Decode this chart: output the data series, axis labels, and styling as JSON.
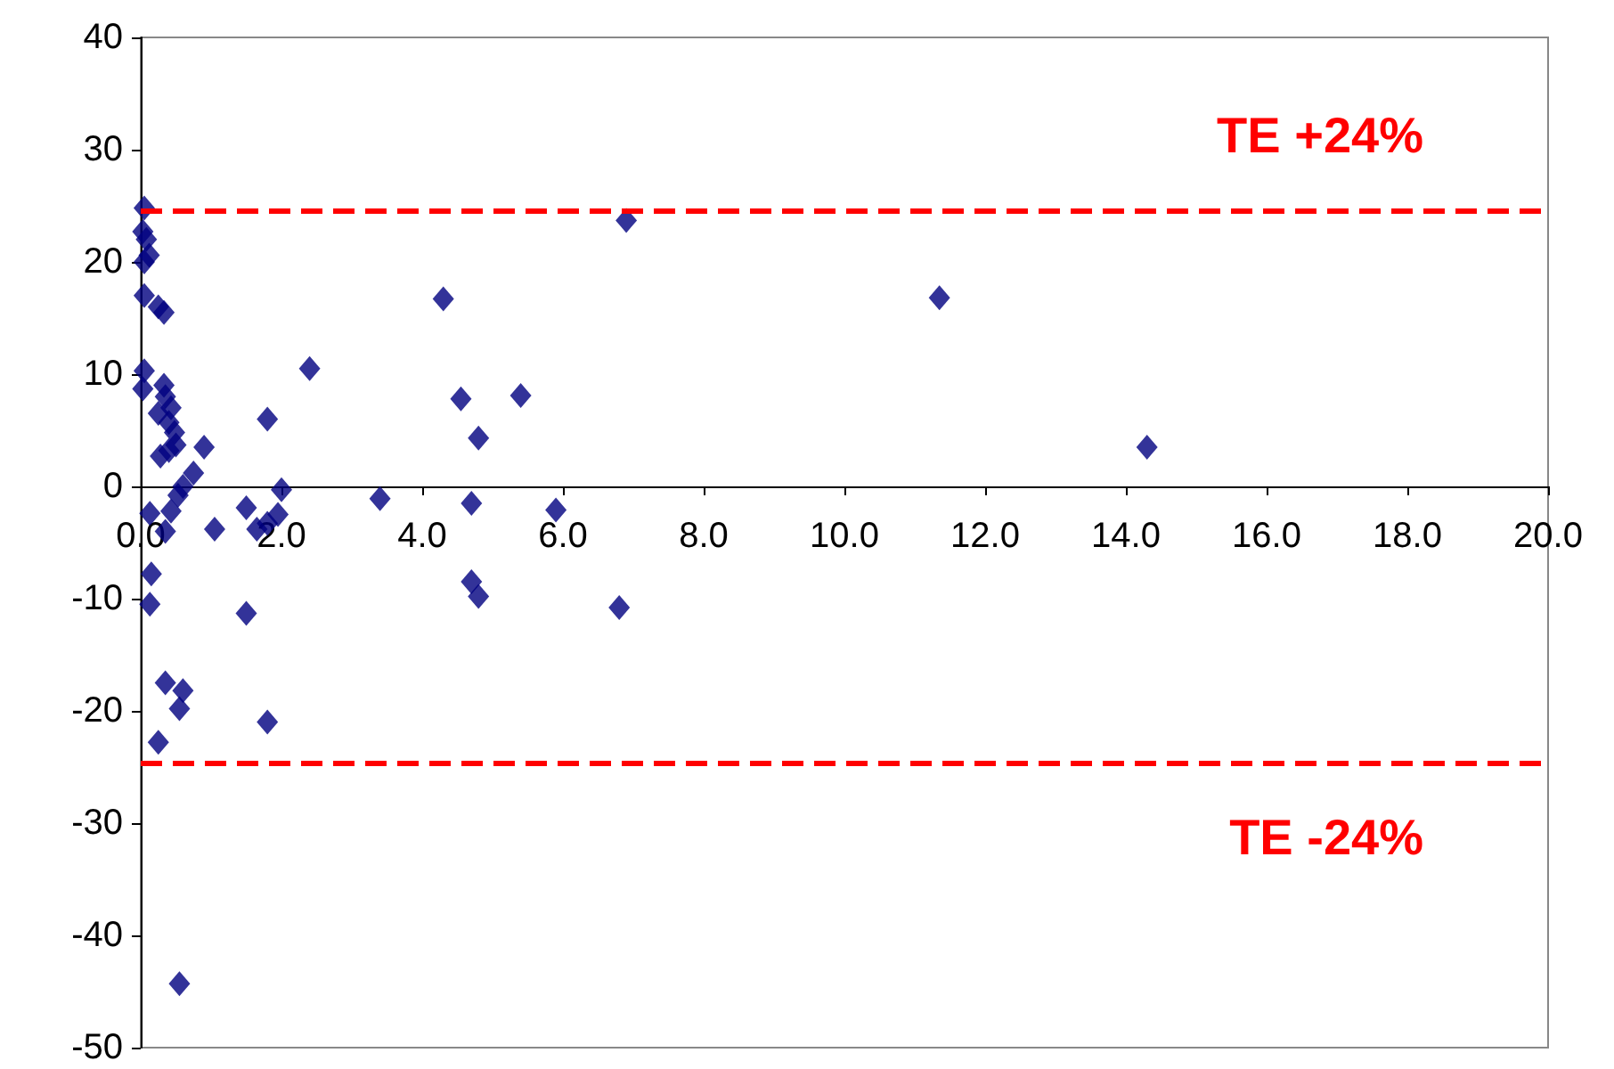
{
  "chart_data": {
    "type": "scatter",
    "marker": "diamond",
    "grid": false,
    "x": [
      0.05,
      0.03,
      0.08,
      0.05,
      0.12,
      0.05,
      0.25,
      0.33,
      0.05,
      0.03,
      0.33,
      0.35,
      0.43,
      0.25,
      0.4,
      0.48,
      0.5,
      0.4,
      0.28,
      0.9,
      0.75,
      0.6,
      0.53,
      0.43,
      0.13,
      0.35,
      1.05,
      1.5,
      1.5,
      1.8,
      1.65,
      1.95,
      2.0,
      1.8,
      2.4,
      3.4,
      4.3,
      4.55,
      4.8,
      4.7,
      4.7,
      4.8,
      5.4,
      5.9,
      6.8,
      6.9,
      11.35,
      14.3,
      0.15,
      0.13,
      0.35,
      0.6,
      0.55,
      0.25,
      1.8,
      0.55
    ],
    "values": [
      24.8,
      22.7,
      22.0,
      20.0,
      20.6,
      17.0,
      16.0,
      15.5,
      10.3,
      8.7,
      9.0,
      8.0,
      7.0,
      6.5,
      5.7,
      4.8,
      3.7,
      3.2,
      2.7,
      3.5,
      1.2,
      0.0,
      -0.8,
      -2.2,
      -2.4,
      -4.0,
      -3.8,
      -11.3,
      -1.9,
      -3.3,
      -3.8,
      -2.5,
      -0.3,
      6.0,
      10.5,
      -1.1,
      16.7,
      7.8,
      4.3,
      -1.5,
      -8.5,
      -9.8,
      8.1,
      -2.1,
      -10.8,
      23.7,
      16.8,
      3.5,
      -7.8,
      -10.5,
      -17.5,
      -18.2,
      -19.8,
      -22.8,
      -21.0,
      -44.3
    ],
    "color": "#000080",
    "xlim": [
      0,
      20
    ],
    "xticks": [
      {
        "value": 0,
        "label": "0.0"
      },
      {
        "value": 2,
        "label": "2.0"
      },
      {
        "value": 4,
        "label": "4.0"
      },
      {
        "value": 6,
        "label": "6.0"
      },
      {
        "value": 8,
        "label": "8.0"
      },
      {
        "value": 10,
        "label": "10.0"
      },
      {
        "value": 12,
        "label": "12.0"
      },
      {
        "value": 14,
        "label": "14.0"
      },
      {
        "value": 16,
        "label": "16.0"
      },
      {
        "value": 18,
        "label": "18.0"
      },
      {
        "value": 20,
        "label": "20.0"
      }
    ],
    "ylim": [
      -50,
      40
    ],
    "yticks": [
      -50,
      -40,
      -30,
      -20,
      -10,
      0,
      10,
      20,
      30,
      40
    ],
    "ref_lines": [
      {
        "axis": "y",
        "value": 24.6,
        "label": "TE +24%",
        "color": "#ff0000",
        "line_style": "dashed"
      },
      {
        "axis": "y",
        "value": -24.6,
        "label": "TE -24%",
        "color": "#ff0000",
        "line_style": "dashed"
      }
    ]
  }
}
